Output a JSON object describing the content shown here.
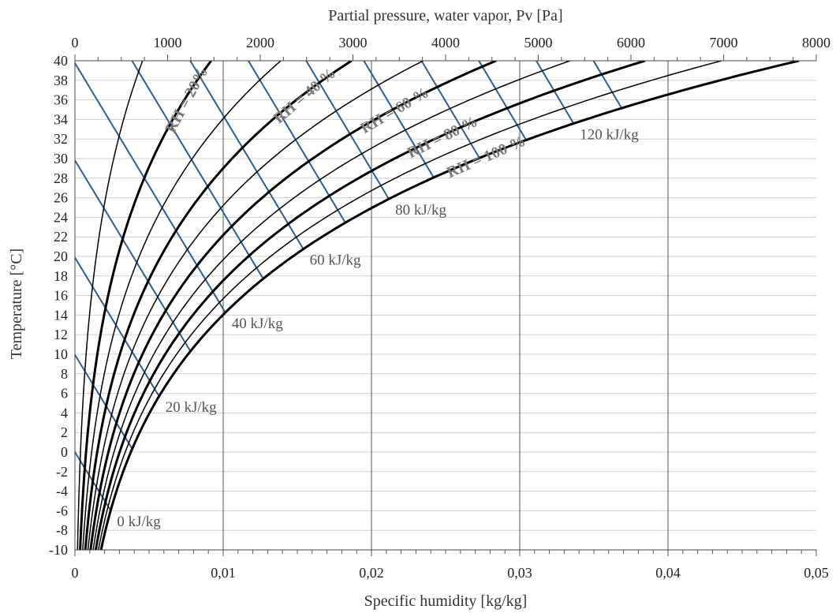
{
  "chart_data": {
    "type": "line",
    "title": "",
    "xlabel": "Specific humidity [kg/kg]",
    "ylabel": "Temperature [°C]",
    "x2label": "Partial pressure, water vapor, Pv [Pa]",
    "xlim": [
      0,
      0.05
    ],
    "ylim": [
      -10,
      40
    ],
    "x2lim": [
      0,
      8000
    ],
    "grid": true,
    "x_ticks": [
      "0",
      "0,01",
      "0,02",
      "0,03",
      "0,04",
      "0,05"
    ],
    "x2_ticks": [
      "0",
      "1000",
      "2000",
      "3000",
      "4000",
      "5000",
      "6000",
      "7000",
      "8000"
    ],
    "y_ticks": [
      "-10",
      "-8",
      "-6",
      "-4",
      "-2",
      "0",
      "2",
      "4",
      "6",
      "8",
      "10",
      "12",
      "14",
      "16",
      "18",
      "20",
      "22",
      "24",
      "26",
      "28",
      "30",
      "32",
      "34",
      "36",
      "38",
      "40"
    ],
    "rh_curves": [
      {
        "name": "RH = 10 %",
        "rh": 10,
        "bold": false
      },
      {
        "name": "RH = 20 %",
        "rh": 20,
        "bold": true
      },
      {
        "name": "RH = 30 %",
        "rh": 30,
        "bold": false
      },
      {
        "name": "RH = 40 %",
        "rh": 40,
        "bold": true
      },
      {
        "name": "RH = 50 %",
        "rh": 50,
        "bold": false
      },
      {
        "name": "RH = 60 %",
        "rh": 60,
        "bold": true
      },
      {
        "name": "RH = 70 %",
        "rh": 70,
        "bold": false
      },
      {
        "name": "RH = 80 %",
        "rh": 80,
        "bold": true
      },
      {
        "name": "RH = 90 %",
        "rh": 90,
        "bold": false
      },
      {
        "name": "RH = 100 %",
        "rh": 100,
        "bold": true
      }
    ],
    "enthalpy_lines": [
      {
        "h": 0,
        "label": "0 kJ/kg"
      },
      {
        "h": 10,
        "label": ""
      },
      {
        "h": 20,
        "label": "20 kJ/kg"
      },
      {
        "h": 30,
        "label": ""
      },
      {
        "h": 40,
        "label": "40 kJ/kg"
      },
      {
        "h": 50,
        "label": ""
      },
      {
        "h": 60,
        "label": "60 kJ/kg"
      },
      {
        "h": 70,
        "label": ""
      },
      {
        "h": 80,
        "label": "80 kJ/kg"
      },
      {
        "h": 90,
        "label": ""
      },
      {
        "h": 100,
        "label": ""
      },
      {
        "h": 110,
        "label": ""
      },
      {
        "h": 120,
        "label": "120 kJ/kg"
      },
      {
        "h": 130,
        "label": ""
      }
    ],
    "rh_annotations": [
      "RH = 20%",
      "RH = 40 %",
      "RH = 60 %",
      "RH = 80 %",
      "RH = 100 %"
    ],
    "colors": {
      "rh": "#000000",
      "enthalpy": "#2f5d8c",
      "grid": "#cfcfcf",
      "vgrid": "#555555"
    }
  }
}
